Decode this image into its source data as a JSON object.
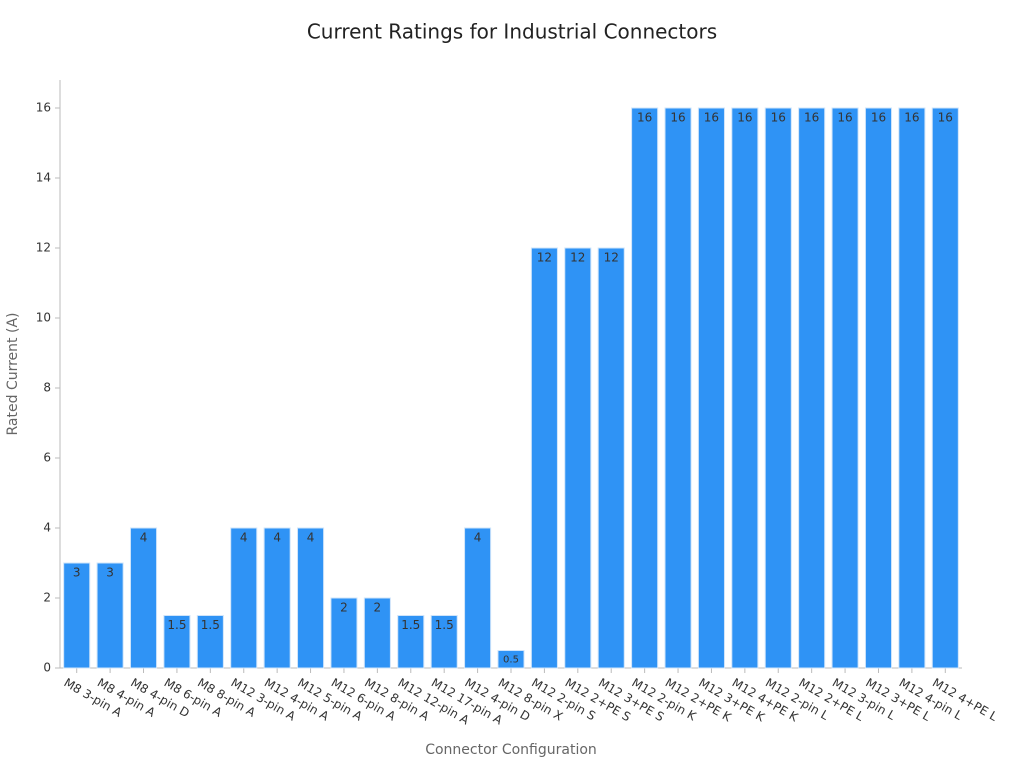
{
  "chart_data": {
    "type": "bar",
    "title": "Current Ratings for Industrial Connectors",
    "x_label": "Connector Configuration",
    "y_label": "Rated Current (A)",
    "categories": [
      "M8 3-pin A",
      "M8 4-pin A",
      "M8 4-pin D",
      "M8 6-pin A",
      "M8 8-pin A",
      "M12 3-pin A",
      "M12 4-pin A",
      "M12 5-pin A",
      "M12 6-pin A",
      "M12 8-pin A",
      "M12 12-pin A",
      "M12 17-pin A",
      "M12 4-pin D",
      "M12 8-pin X",
      "M12 2-pin S",
      "M12 2+PE S",
      "M12 3+PE S",
      "M12 2-pin K",
      "M12 2+PE K",
      "M12 3+PE K",
      "M12 4+PE K",
      "M12 2-pin L",
      "M12 2+PE L",
      "M12 3-pin L",
      "M12 3+PE L",
      "M12 4-pin L",
      "M12 4+PE L"
    ],
    "values": [
      3,
      3,
      4,
      1.5,
      1.5,
      4,
      4,
      4,
      2,
      2,
      1.5,
      1.5,
      4,
      0.5,
      12,
      12,
      12,
      16,
      16,
      16,
      16,
      16,
      16,
      16,
      16,
      16,
      16
    ],
    "color": "#2f93f5",
    "ylim": [
      0,
      16.8
    ],
    "yticks": [
      0,
      2,
      4,
      6,
      8,
      10,
      12,
      14,
      16
    ],
    "grid": false
  }
}
